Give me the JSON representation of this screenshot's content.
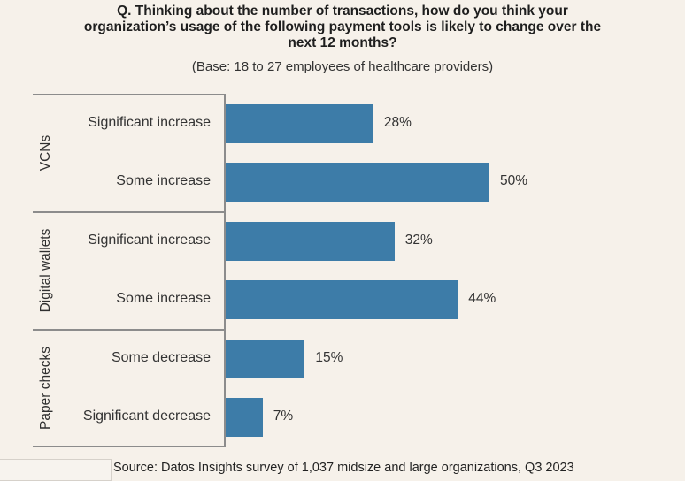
{
  "chart_data": {
    "type": "bar",
    "orientation": "horizontal",
    "title": "Q. Thinking about the number of transactions, how do you think your organization’s usage of the following payment tools is likely to change over the next 12 months?",
    "title_lines": [
      "Q. Thinking about the number of transactions, how do you think your",
      "organization’s usage of the following payment tools is likely to change over the",
      "next 12 months?"
    ],
    "subtitle": "(Base: 18 to 27 employees of healthcare providers)",
    "xlabel": "",
    "ylabel": "",
    "xlim": [
      0,
      100
    ],
    "grid": false,
    "value_suffix": "%",
    "color": "#3d7ca8",
    "groups": [
      {
        "name": "VCNs",
        "categories": [
          "Significant increase",
          "Some increase"
        ],
        "values": [
          28,
          50
        ]
      },
      {
        "name": "Digital wallets",
        "categories": [
          "Significant increase",
          "Some increase"
        ],
        "values": [
          32,
          44
        ]
      },
      {
        "name": "Paper checks",
        "categories": [
          "Some decrease",
          "Significant decrease"
        ],
        "values": [
          15,
          7
        ]
      }
    ],
    "source": "Source: Datos Insights survey of 1,037 midsize and large organizations, Q3 2023"
  }
}
